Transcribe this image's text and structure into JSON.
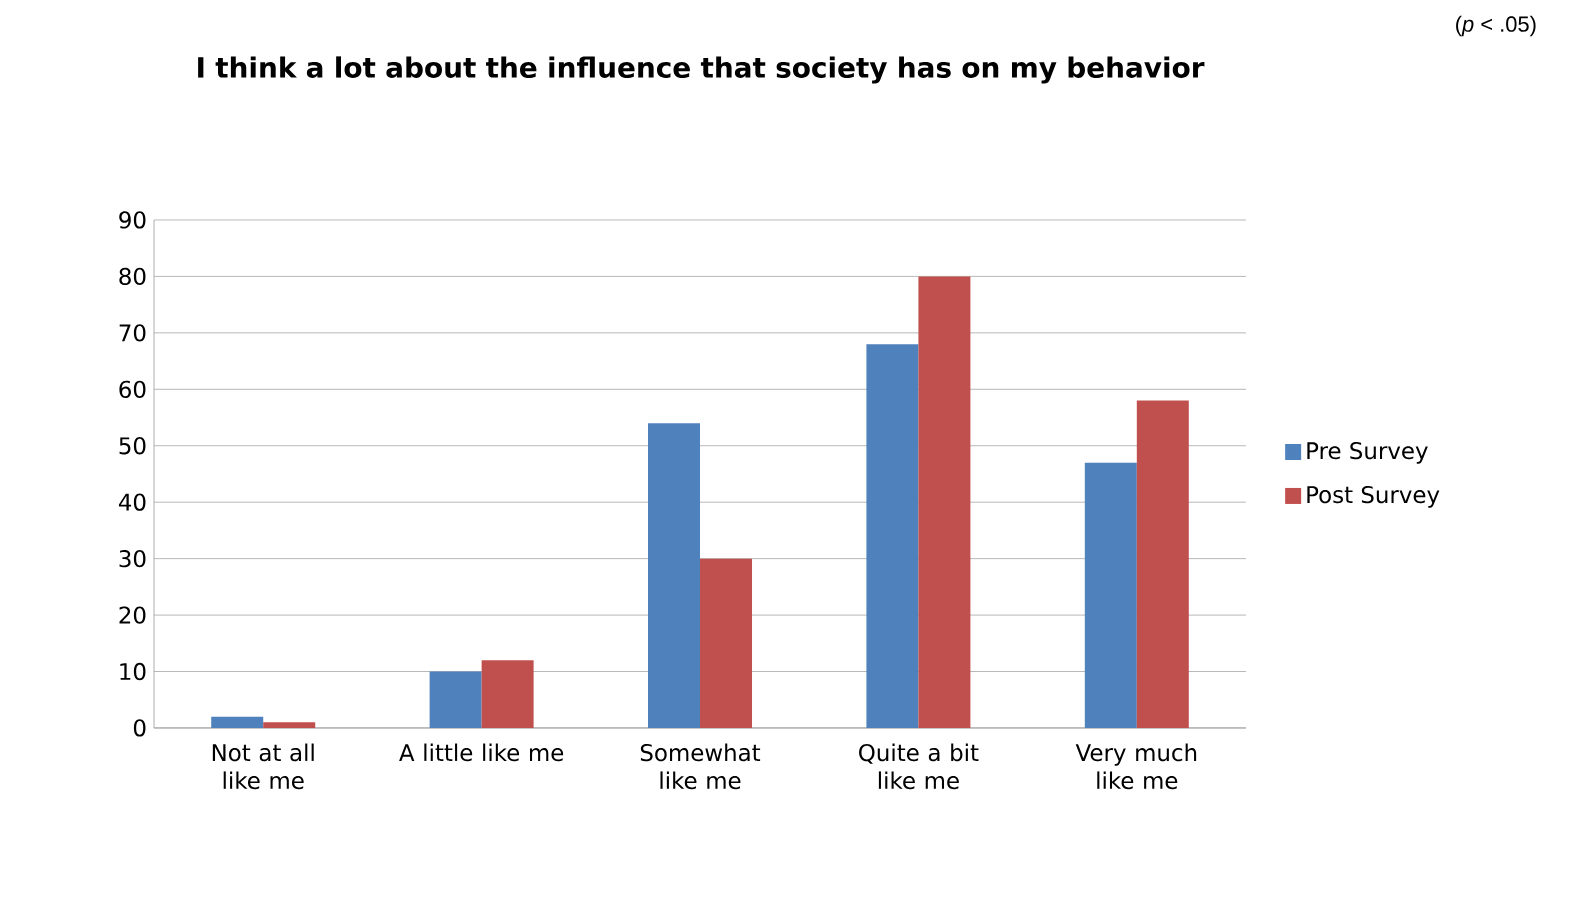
{
  "chart_data": {
    "type": "bar",
    "title": "I think a lot about the influence that society has on my behavior",
    "categories": [
      "Not at all like me",
      "A little like me",
      "Somewhat like me",
      "Quite a bit like me",
      "Very much like me"
    ],
    "series": [
      {
        "name": "Pre Survey",
        "color": "#4f81bd",
        "values": [
          2,
          10,
          54,
          68,
          47
        ]
      },
      {
        "name": "Post Survey",
        "color": "#c0504d",
        "values": [
          1,
          12,
          30,
          80,
          58
        ]
      }
    ],
    "ylim": [
      0,
      90
    ],
    "yticks": [
      0,
      10,
      20,
      30,
      40,
      50,
      60,
      70,
      80,
      90
    ],
    "grid": "y",
    "legend": "right",
    "annotations": [
      "(*p* < .05)"
    ]
  }
}
